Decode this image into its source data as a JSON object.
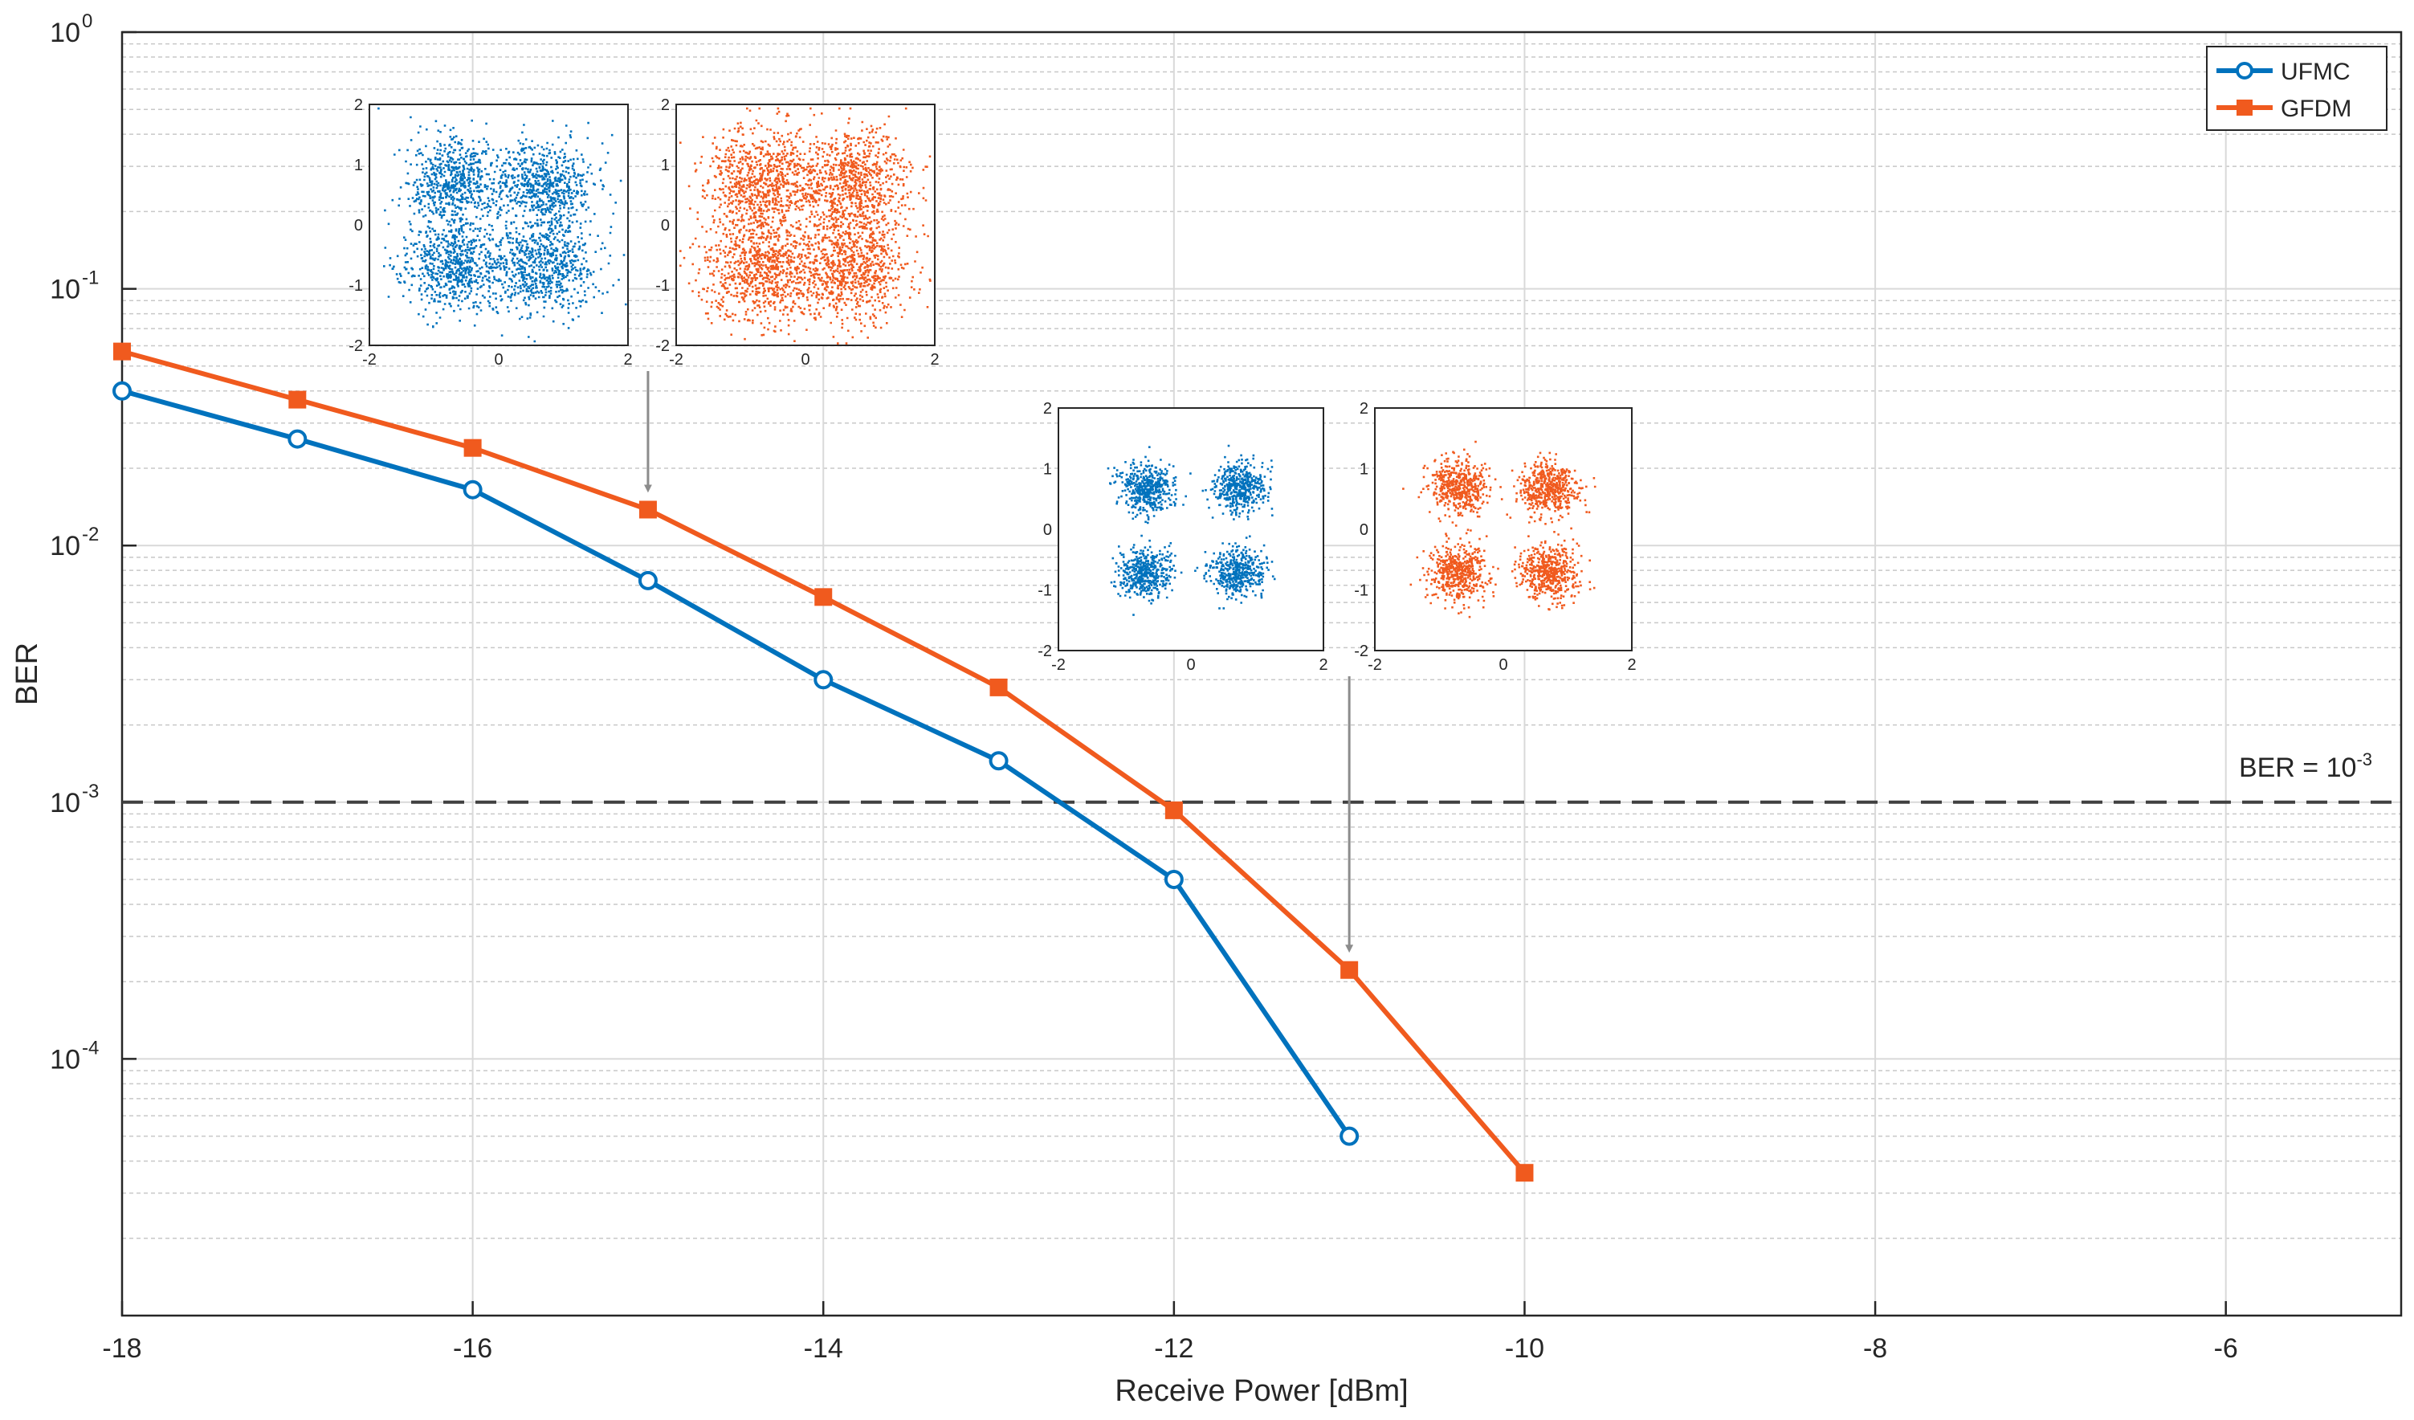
{
  "chart_data": {
    "type": "line",
    "title": "",
    "xlabel": "Receive Power [dBm]",
    "ylabel": "BER",
    "xlim": [
      -18,
      -5
    ],
    "ylim_log10": [
      -5,
      0
    ],
    "yscale": "log",
    "grid": true,
    "x_ticks": [
      -18,
      -16,
      -14,
      -12,
      -10,
      -8,
      -6
    ],
    "x_tick_labels": [
      "-18",
      "-16",
      "-14",
      "-12",
      "-10",
      "-8",
      "-6"
    ],
    "y_tick_exponents": [
      0,
      -1,
      -2,
      -3,
      -4
    ],
    "y_tick_base": "10",
    "y_tick_exponent_labels": [
      "0",
      "-1",
      "-2",
      "-3",
      "-4"
    ],
    "series": [
      {
        "name": "UFMC",
        "color": "#0072BD",
        "marker": "circle",
        "x": [
          -18,
          -17,
          -16,
          -15,
          -14,
          -13,
          -12,
          -11
        ],
        "y": [
          0.04,
          0.026,
          0.0165,
          0.0073,
          0.003,
          0.00145,
          0.0005,
          5e-05
        ]
      },
      {
        "name": "GFDM",
        "color": "#F05A1E",
        "marker": "square",
        "x": [
          -18,
          -17,
          -16,
          -15,
          -14,
          -13,
          -12,
          -11,
          -10
        ],
        "y": [
          0.057,
          0.037,
          0.024,
          0.0138,
          0.0063,
          0.0028,
          0.00093,
          0.000222,
          3.6e-05
        ]
      }
    ],
    "reference_line": {
      "y": 0.001,
      "style": "dashed",
      "color": "#404040",
      "label_prefix": "BER = 10",
      "label_exponent": "-3"
    },
    "legend": {
      "position": "top-right",
      "entries": [
        "UFMC",
        "GFDM"
      ]
    },
    "insets": [
      {
        "name": "constellation-ufmc-at-minus15",
        "color": "#0072BD",
        "spread": 0.38,
        "points": 2600,
        "seed": 11,
        "ticks": [
          "-2",
          "0",
          "2"
        ],
        "ticks_y": [
          "2",
          "1",
          "0",
          "-1",
          "-2"
        ],
        "arrow_to": null
      },
      {
        "name": "constellation-gfdm-at-minus15",
        "color": "#F05A1E",
        "spread": 0.44,
        "points": 3200,
        "seed": 23,
        "ticks": [
          "-2",
          "0",
          "2"
        ],
        "ticks_y": [
          "2",
          "1",
          "0",
          "-1",
          "-2"
        ],
        "arrow_to": {
          "x": -15,
          "y": 0.0155
        }
      },
      {
        "name": "constellation-ufmc-at-minus11",
        "color": "#0072BD",
        "spread": 0.2,
        "points": 1800,
        "seed": 37,
        "ticks": [
          "-2",
          "0",
          "2"
        ],
        "ticks_y": [
          "2",
          "1",
          "0",
          "-1",
          "-2"
        ],
        "arrow_to": null
      },
      {
        "name": "constellation-gfdm-at-minus11",
        "color": "#F05A1E",
        "spread": 0.23,
        "points": 2000,
        "seed": 53,
        "ticks": [
          "-2",
          "0",
          "2"
        ],
        "ticks_y": [
          "2",
          "1",
          "0",
          "-1",
          "-2"
        ],
        "arrow_to": {
          "x": -11,
          "y": 0.00025
        }
      }
    ]
  }
}
